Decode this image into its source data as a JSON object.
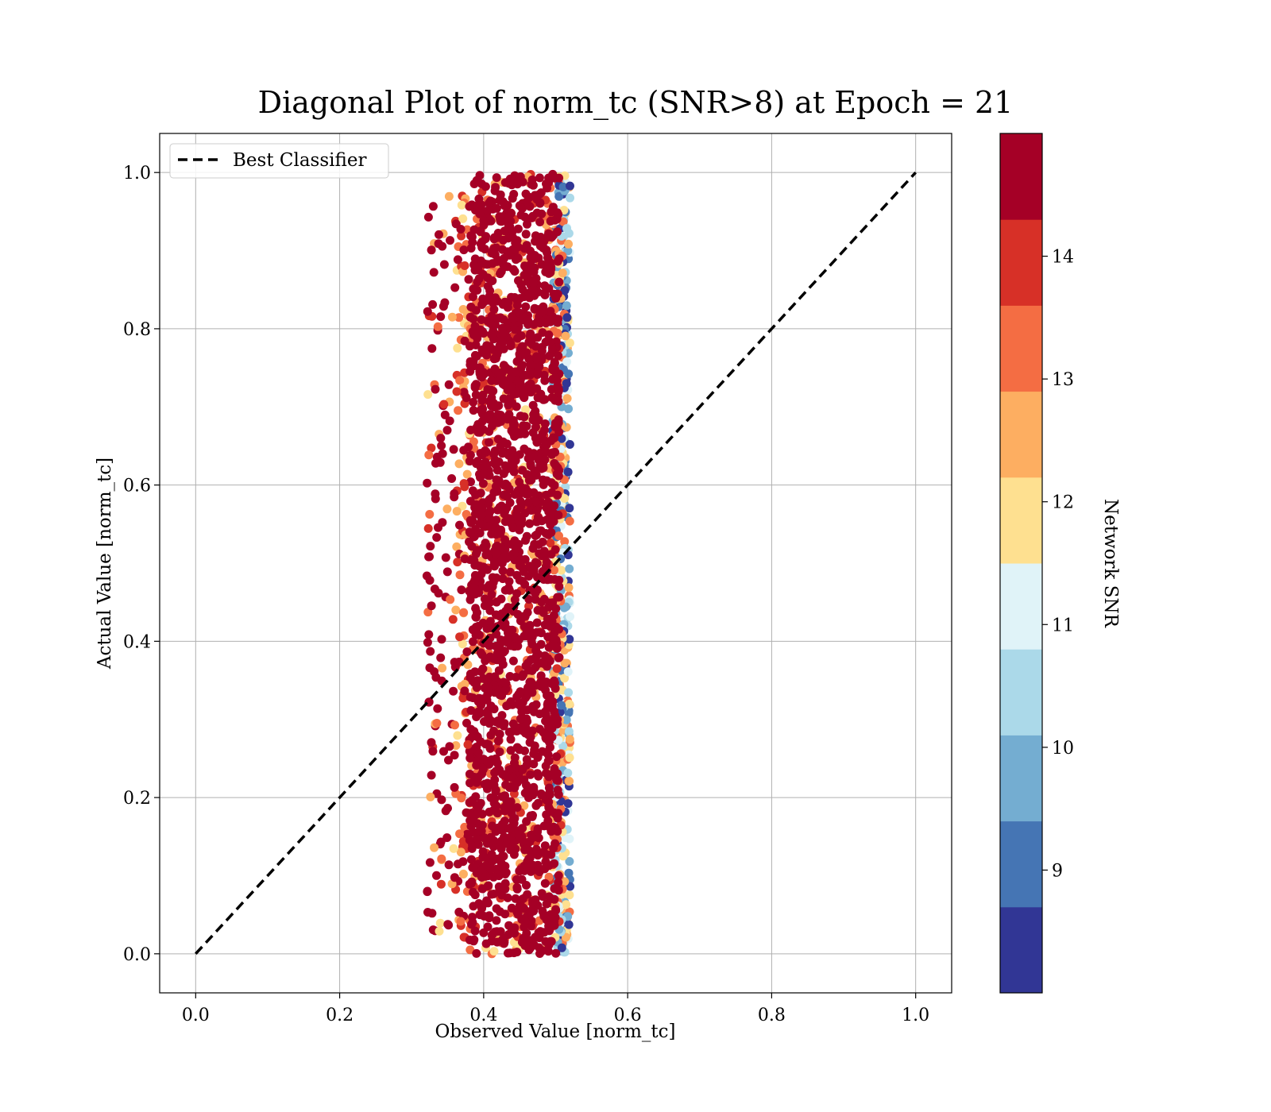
{
  "chart_data": {
    "type": "scatter",
    "title": "Diagonal Plot of norm_tc (SNR>8) at Epoch = 21",
    "xlabel": "Observed Value [norm_tc]",
    "ylabel": "Actual Value [norm_tc]",
    "xlim": [
      -0.05,
      1.05
    ],
    "ylim": [
      -0.05,
      1.05
    ],
    "xticks": [
      "0.0",
      "0.2",
      "0.4",
      "0.6",
      "0.8",
      "1.0"
    ],
    "yticks": [
      "0.0",
      "0.2",
      "0.4",
      "0.6",
      "0.8",
      "1.0"
    ],
    "grid": true,
    "legend": {
      "placement": "upper-left",
      "entries": [
        {
          "label": "Best Classifier",
          "style": "dashed",
          "color": "#000000"
        }
      ]
    },
    "diagonal_line": {
      "name": "Best Classifier",
      "x": [
        0.0,
        1.0
      ],
      "y": [
        0.0,
        1.0
      ]
    },
    "point_cloud": {
      "x_core_range": [
        0.4,
        0.5
      ],
      "x_full_range": [
        0.32,
        0.52
      ],
      "y_range": [
        0.0,
        1.0
      ],
      "dominant_snr": 14.5,
      "description_color": "#a50026"
    },
    "colorbar": {
      "label": "Network SNR",
      "range": [
        8.0,
        15.0
      ],
      "ticks": [
        "9",
        "10",
        "11",
        "12",
        "13",
        "14"
      ],
      "tick_values": [
        9,
        10,
        11,
        12,
        13,
        14
      ],
      "levels": [
        8.0,
        8.7,
        9.4,
        10.1,
        10.8,
        11.5,
        12.2,
        12.9,
        13.6,
        14.3,
        15.0
      ],
      "colors": [
        "#313695",
        "#4575b4",
        "#74add1",
        "#abd9e9",
        "#e0f3f8",
        "#fee090",
        "#fdae61",
        "#f46d43",
        "#d73027",
        "#a50026"
      ]
    }
  }
}
